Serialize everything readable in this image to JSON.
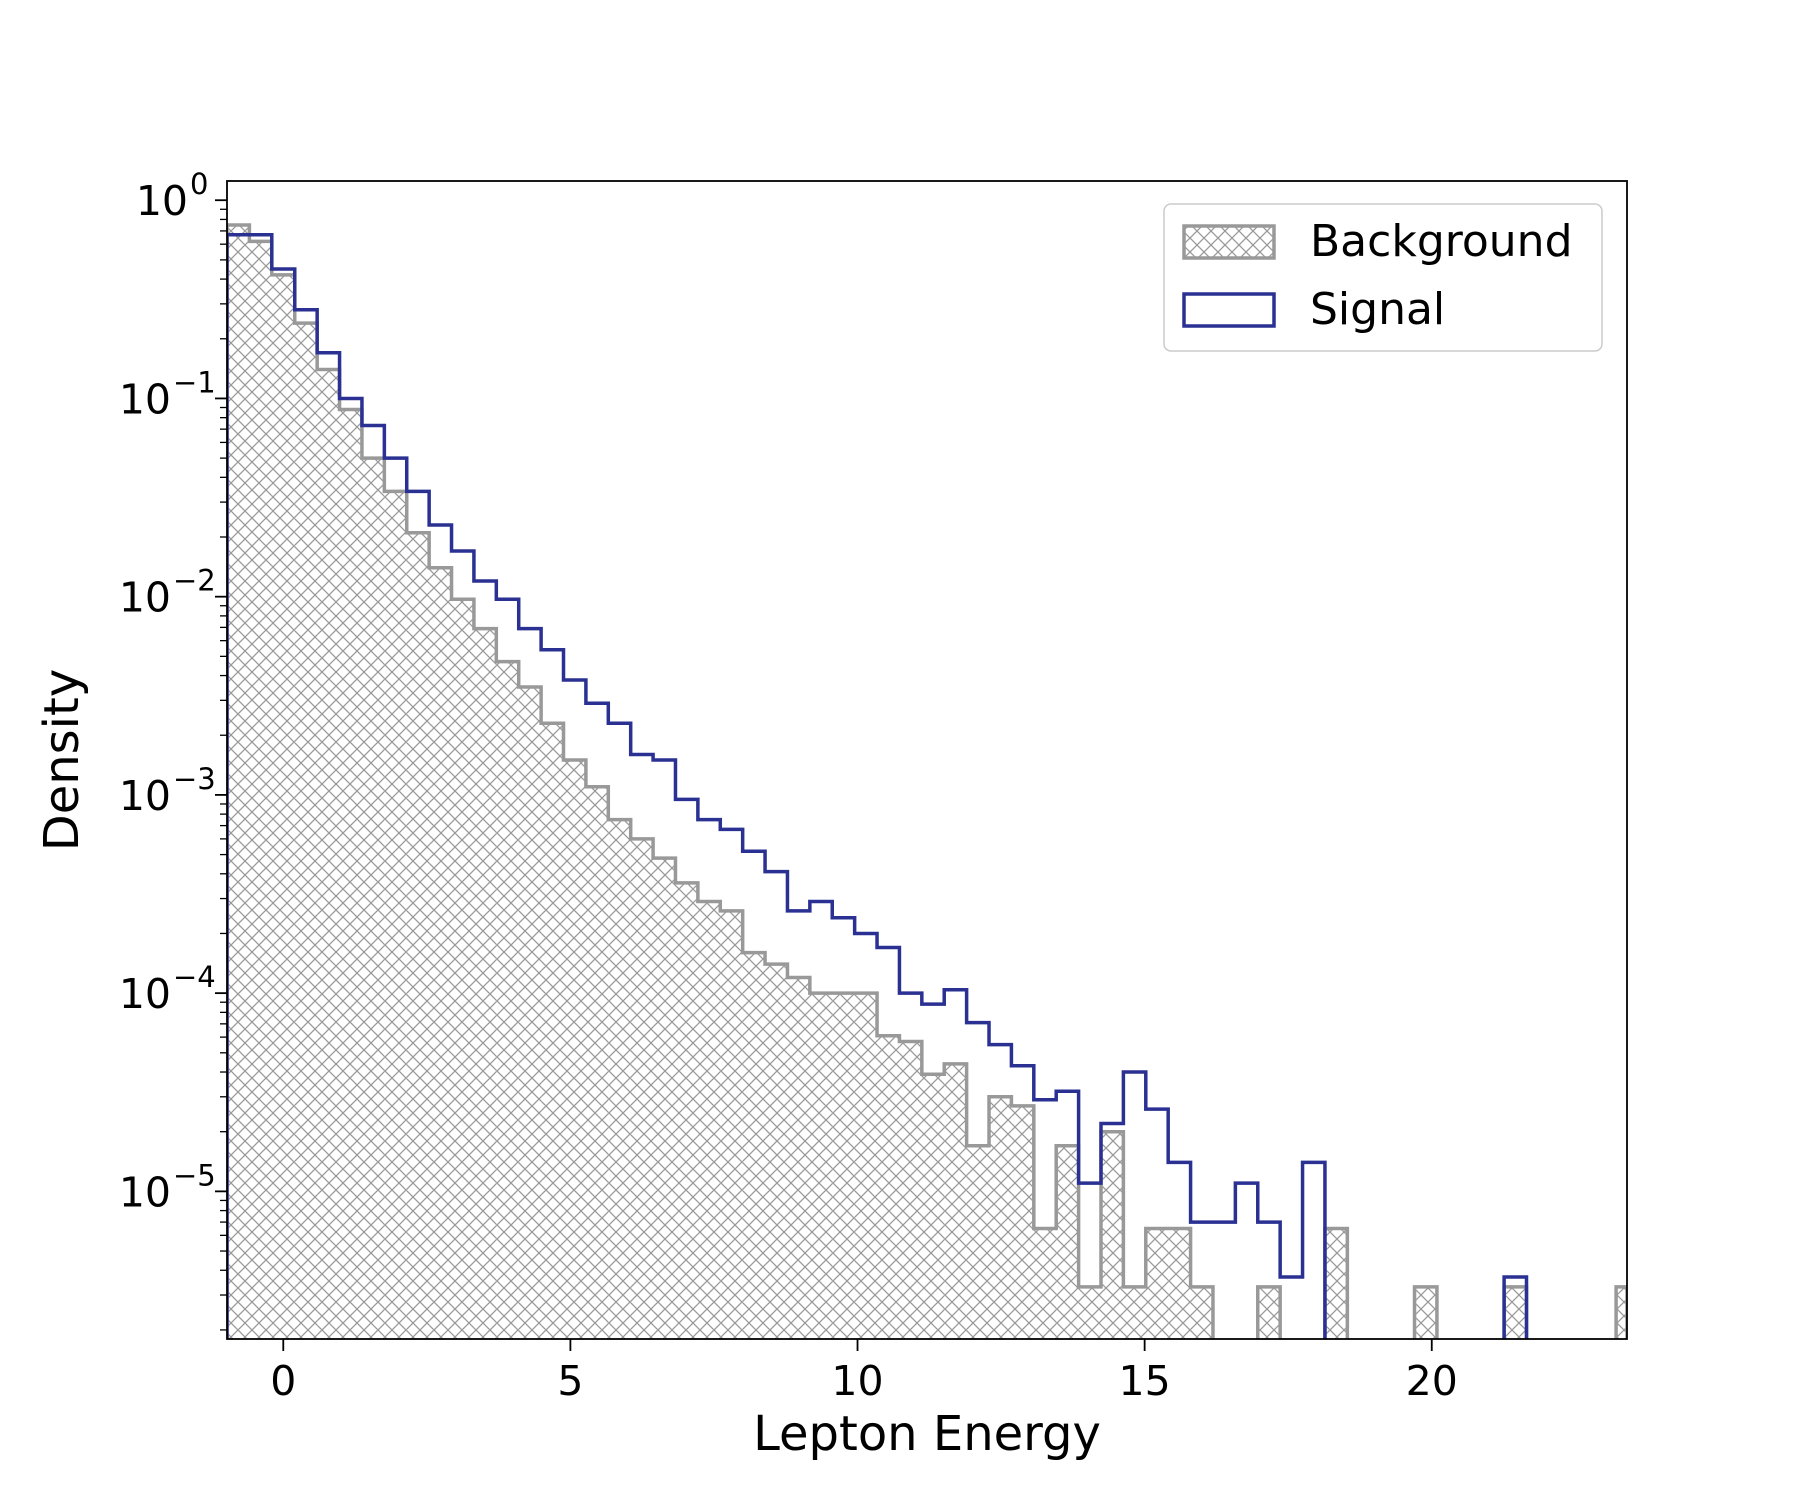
{
  "chart_data": {
    "type": "histogram",
    "title": "",
    "xlabel": "Lepton Energy",
    "ylabel": "Density",
    "xlim": [
      -0.98,
      23.4
    ],
    "ylim": [
      1.8e-06,
      1.25
    ],
    "yscale": "log",
    "grid": false,
    "legend_position": "top-right",
    "xticks": [
      0,
      5,
      10,
      15,
      20
    ],
    "yticks": [
      {
        "value": 1.0,
        "base": "10",
        "exp": "0"
      },
      {
        "value": 0.1,
        "base": "10",
        "exp": "−1"
      },
      {
        "value": 0.01,
        "base": "10",
        "exp": "−2"
      },
      {
        "value": 0.001,
        "base": "10",
        "exp": "−3"
      },
      {
        "value": 0.0001,
        "base": "10",
        "exp": "−4"
      },
      {
        "value": 1e-05,
        "base": "10",
        "exp": "−5"
      }
    ],
    "series": [
      {
        "name": "Background",
        "style": "hatched-step",
        "color": "#999999",
        "bins": [
          {
            "x0": -0.98,
            "x1": -0.59,
            "y": 0.75
          },
          {
            "x0": -0.59,
            "x1": -0.2,
            "y": 0.62
          },
          {
            "x0": -0.2,
            "x1": 0.2,
            "y": 0.42
          },
          {
            "x0": 0.2,
            "x1": 0.59,
            "y": 0.24
          },
          {
            "x0": 0.59,
            "x1": 0.98,
            "y": 0.14
          },
          {
            "x0": 0.98,
            "x1": 1.37,
            "y": 0.088
          },
          {
            "x0": 1.37,
            "x1": 1.76,
            "y": 0.05
          },
          {
            "x0": 1.76,
            "x1": 2.15,
            "y": 0.034
          },
          {
            "x0": 2.15,
            "x1": 2.54,
            "y": 0.021
          },
          {
            "x0": 2.54,
            "x1": 2.93,
            "y": 0.014
          },
          {
            "x0": 2.93,
            "x1": 3.32,
            "y": 0.0097
          },
          {
            "x0": 3.32,
            "x1": 3.71,
            "y": 0.0069
          },
          {
            "x0": 3.71,
            "x1": 4.1,
            "y": 0.0047
          },
          {
            "x0": 4.1,
            "x1": 4.49,
            "y": 0.0035
          },
          {
            "x0": 4.49,
            "x1": 4.88,
            "y": 0.0023
          },
          {
            "x0": 4.88,
            "x1": 5.27,
            "y": 0.0015
          },
          {
            "x0": 5.27,
            "x1": 5.66,
            "y": 0.0011
          },
          {
            "x0": 5.66,
            "x1": 6.05,
            "y": 0.00075
          },
          {
            "x0": 6.05,
            "x1": 6.44,
            "y": 0.0006
          },
          {
            "x0": 6.44,
            "x1": 6.83,
            "y": 0.00048
          },
          {
            "x0": 6.83,
            "x1": 7.22,
            "y": 0.00036
          },
          {
            "x0": 7.22,
            "x1": 7.61,
            "y": 0.00029
          },
          {
            "x0": 7.61,
            "x1": 8.0,
            "y": 0.00026
          },
          {
            "x0": 8.0,
            "x1": 8.39,
            "y": 0.00016
          },
          {
            "x0": 8.39,
            "x1": 8.78,
            "y": 0.00014
          },
          {
            "x0": 8.78,
            "x1": 9.17,
            "y": 0.00012
          },
          {
            "x0": 9.17,
            "x1": 9.56,
            "y": 0.0001
          },
          {
            "x0": 9.56,
            "x1": 9.95,
            "y": 0.0001
          },
          {
            "x0": 9.95,
            "x1": 10.34,
            "y": 0.0001
          },
          {
            "x0": 10.34,
            "x1": 10.73,
            "y": 6.1e-05
          },
          {
            "x0": 10.73,
            "x1": 11.12,
            "y": 5.7e-05
          },
          {
            "x0": 11.12,
            "x1": 11.51,
            "y": 3.9e-05
          },
          {
            "x0": 11.51,
            "x1": 11.9,
            "y": 4.4e-05
          },
          {
            "x0": 11.9,
            "x1": 12.29,
            "y": 1.7e-05
          },
          {
            "x0": 12.29,
            "x1": 12.68,
            "y": 3e-05
          },
          {
            "x0": 12.68,
            "x1": 13.07,
            "y": 2.7e-05
          },
          {
            "x0": 13.07,
            "x1": 13.46,
            "y": 6.5e-06
          },
          {
            "x0": 13.46,
            "x1": 13.85,
            "y": 1.7e-05
          },
          {
            "x0": 13.85,
            "x1": 14.24,
            "y": 3.3e-06
          },
          {
            "x0": 14.24,
            "x1": 14.63,
            "y": 2e-05
          },
          {
            "x0": 14.63,
            "x1": 15.02,
            "y": 3.3e-06
          },
          {
            "x0": 15.02,
            "x1": 15.41,
            "y": 6.5e-06
          },
          {
            "x0": 15.41,
            "x1": 15.8,
            "y": 6.5e-06
          },
          {
            "x0": 15.8,
            "x1": 16.19,
            "y": 3.3e-06
          },
          {
            "x0": 16.19,
            "x1": 16.58,
            "y": 0
          },
          {
            "x0": 16.58,
            "x1": 16.97,
            "y": 0
          },
          {
            "x0": 16.97,
            "x1": 17.36,
            "y": 3.3e-06
          },
          {
            "x0": 17.36,
            "x1": 17.75,
            "y": 0
          },
          {
            "x0": 17.75,
            "x1": 18.14,
            "y": 0
          },
          {
            "x0": 18.14,
            "x1": 18.53,
            "y": 6.5e-06
          },
          {
            "x0": 18.53,
            "x1": 18.92,
            "y": 0
          },
          {
            "x0": 18.92,
            "x1": 19.31,
            "y": 0
          },
          {
            "x0": 19.31,
            "x1": 19.7,
            "y": 0
          },
          {
            "x0": 19.7,
            "x1": 20.09,
            "y": 3.3e-06
          },
          {
            "x0": 20.09,
            "x1": 20.48,
            "y": 0
          },
          {
            "x0": 20.48,
            "x1": 20.87,
            "y": 0
          },
          {
            "x0": 20.87,
            "x1": 21.26,
            "y": 0
          },
          {
            "x0": 21.26,
            "x1": 21.65,
            "y": 3.3e-06
          },
          {
            "x0": 21.65,
            "x1": 22.04,
            "y": 0
          },
          {
            "x0": 22.04,
            "x1": 22.43,
            "y": 0
          },
          {
            "x0": 22.43,
            "x1": 22.82,
            "y": 0
          },
          {
            "x0": 22.82,
            "x1": 23.21,
            "y": 0
          },
          {
            "x0": 23.21,
            "x1": 23.4,
            "y": 3.3e-06
          }
        ]
      },
      {
        "name": "Signal",
        "style": "step",
        "color": "#2a3192",
        "bins": [
          {
            "x0": -0.98,
            "x1": -0.2,
            "y": 0.67
          },
          {
            "x0": -0.2,
            "x1": 0.2,
            "y": 0.45
          },
          {
            "x0": 0.2,
            "x1": 0.59,
            "y": 0.28
          },
          {
            "x0": 0.59,
            "x1": 0.98,
            "y": 0.17
          },
          {
            "x0": 0.98,
            "x1": 1.37,
            "y": 0.1
          },
          {
            "x0": 1.37,
            "x1": 1.76,
            "y": 0.073
          },
          {
            "x0": 1.76,
            "x1": 2.15,
            "y": 0.05
          },
          {
            "x0": 2.15,
            "x1": 2.54,
            "y": 0.034
          },
          {
            "x0": 2.54,
            "x1": 2.93,
            "y": 0.023
          },
          {
            "x0": 2.93,
            "x1": 3.32,
            "y": 0.017
          },
          {
            "x0": 3.32,
            "x1": 3.71,
            "y": 0.012
          },
          {
            "x0": 3.71,
            "x1": 4.1,
            "y": 0.0097
          },
          {
            "x0": 4.1,
            "x1": 4.49,
            "y": 0.0069
          },
          {
            "x0": 4.49,
            "x1": 4.88,
            "y": 0.0054
          },
          {
            "x0": 4.88,
            "x1": 5.27,
            "y": 0.0038
          },
          {
            "x0": 5.27,
            "x1": 5.66,
            "y": 0.0029
          },
          {
            "x0": 5.66,
            "x1": 6.05,
            "y": 0.0023
          },
          {
            "x0": 6.05,
            "x1": 6.44,
            "y": 0.0016
          },
          {
            "x0": 6.44,
            "x1": 6.83,
            "y": 0.0015
          },
          {
            "x0": 6.83,
            "x1": 7.22,
            "y": 0.00095
          },
          {
            "x0": 7.22,
            "x1": 7.61,
            "y": 0.00075
          },
          {
            "x0": 7.61,
            "x1": 8.0,
            "y": 0.00067
          },
          {
            "x0": 8.0,
            "x1": 8.39,
            "y": 0.00052
          },
          {
            "x0": 8.39,
            "x1": 8.78,
            "y": 0.00041
          },
          {
            "x0": 8.78,
            "x1": 9.17,
            "y": 0.00026
          },
          {
            "x0": 9.17,
            "x1": 9.56,
            "y": 0.00029
          },
          {
            "x0": 9.56,
            "x1": 9.95,
            "y": 0.00024
          },
          {
            "x0": 9.95,
            "x1": 10.34,
            "y": 0.0002
          },
          {
            "x0": 10.34,
            "x1": 10.73,
            "y": 0.00017
          },
          {
            "x0": 10.73,
            "x1": 11.12,
            "y": 0.0001
          },
          {
            "x0": 11.12,
            "x1": 11.51,
            "y": 8.8e-05
          },
          {
            "x0": 11.51,
            "x1": 11.9,
            "y": 0.000104
          },
          {
            "x0": 11.9,
            "x1": 12.29,
            "y": 7.1e-05
          },
          {
            "x0": 12.29,
            "x1": 12.68,
            "y": 5.5e-05
          },
          {
            "x0": 12.68,
            "x1": 13.07,
            "y": 4.3e-05
          },
          {
            "x0": 13.07,
            "x1": 13.46,
            "y": 2.9e-05
          },
          {
            "x0": 13.46,
            "x1": 13.85,
            "y": 3.2e-05
          },
          {
            "x0": 13.85,
            "x1": 14.24,
            "y": 1.1e-05
          },
          {
            "x0": 14.24,
            "x1": 14.63,
            "y": 2.2e-05
          },
          {
            "x0": 14.63,
            "x1": 15.02,
            "y": 4e-05
          },
          {
            "x0": 15.02,
            "x1": 15.41,
            "y": 2.6e-05
          },
          {
            "x0": 15.41,
            "x1": 15.8,
            "y": 1.4e-05
          },
          {
            "x0": 15.8,
            "x1": 16.19,
            "y": 7e-06
          },
          {
            "x0": 16.19,
            "x1": 16.58,
            "y": 7e-06
          },
          {
            "x0": 16.58,
            "x1": 16.97,
            "y": 1.1e-05
          },
          {
            "x0": 16.97,
            "x1": 17.36,
            "y": 7e-06
          },
          {
            "x0": 17.36,
            "x1": 17.75,
            "y": 3.7e-06
          },
          {
            "x0": 17.75,
            "x1": 18.14,
            "y": 1.4e-05
          },
          {
            "x0": 18.14,
            "x1": 21.26,
            "y": 0
          },
          {
            "x0": 21.26,
            "x1": 21.65,
            "y": 3.7e-06
          },
          {
            "x0": 21.65,
            "x1": 23.4,
            "y": 0
          }
        ]
      }
    ]
  }
}
